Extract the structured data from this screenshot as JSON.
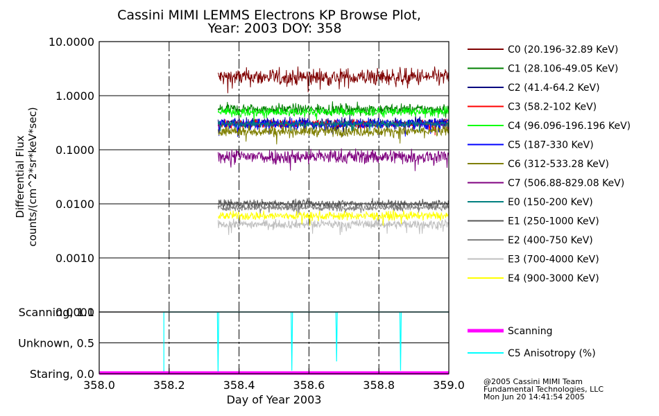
{
  "chart_data": {
    "type": "line",
    "title_line1": "Cassini MIMI LEMMS Electrons KP Browse Plot,",
    "title_line2": "Year: 2003 DOY: 358",
    "ylabel_line1": "Differential Flux",
    "ylabel_line2": "counts/(cm^2*sr*keV*sec)",
    "xlabel": "Day of Year 2003",
    "xlim": [
      358.0,
      359.0
    ],
    "x_ticks": [
      358.0,
      358.2,
      358.4,
      358.6,
      358.8,
      359.0
    ],
    "x_tick_labels": [
      "358.0",
      "358.2",
      "358.4",
      "358.6",
      "358.8",
      "359.0"
    ],
    "data_start": 358.34,
    "data_end": 359.0,
    "flux_panel": {
      "scale": "log",
      "ylim": [
        0.0001,
        10.0
      ],
      "y_ticks": [
        10.0,
        1.0,
        0.1,
        0.01,
        0.001,
        0.0001
      ],
      "y_tick_labels": [
        "10.0000",
        "1.0000",
        "0.1000",
        "0.0100",
        "0.0010",
        "0.0001"
      ],
      "series": [
        {
          "name": "C0 (20.196-32.89 KeV)",
          "color": "#7f0000",
          "level": 2.2,
          "noise": 0.08
        },
        {
          "name": "C1 (28.106-49.05 KeV)",
          "color": "#007f00",
          "level": 0.56,
          "noise": 0.05
        },
        {
          "name": "C2 (41.4-64.2 KeV)",
          "color": "#00007f",
          "level": 0.31,
          "noise": 0.05
        },
        {
          "name": "C3 (58.2-102 KeV)",
          "color": "#ff0000",
          "level": 0.3,
          "noise": 0.04
        },
        {
          "name": "C4 (96.096-196.196 KeV)",
          "color": "#00ff00",
          "level": 0.5,
          "noise": 0.04
        },
        {
          "name": "C5 (187-330 KeV)",
          "color": "#0000ff",
          "level": 0.3,
          "noise": 0.05
        },
        {
          "name": "C6 (312-533.28 KeV)",
          "color": "#7f7f00",
          "level": 0.22,
          "noise": 0.05
        },
        {
          "name": "C7 (506.88-829.08 KeV)",
          "color": "#7f007f",
          "level": 0.075,
          "noise": 0.07
        },
        {
          "name": "E0 (150-200 KeV)",
          "color": "#007f7f",
          "level": 0.3,
          "noise": 0.03
        },
        {
          "name": "E1 (250-1000 KeV)",
          "color": "#555555",
          "level": 0.01,
          "noise": 0.04
        },
        {
          "name": "E2 (400-750 KeV)",
          "color": "#7f7f7f",
          "level": 0.0085,
          "noise": 0.03
        },
        {
          "name": "E3 (700-4000 KeV)",
          "color": "#bfbfbf",
          "level": 0.0042,
          "noise": 0.04
        },
        {
          "name": "E4 (900-3000 KeV)",
          "color": "#ffff00",
          "level": 0.006,
          "noise": 0.04
        }
      ]
    },
    "mode_panel": {
      "ylim": [
        0.0,
        1.0
      ],
      "y_ticks": [
        1.0,
        0.5,
        0.0
      ],
      "y_tick_labels": [
        "Scanning, 1.0",
        "Unknown, 0.5",
        "Staring, 0.0"
      ],
      "series": [
        {
          "name": "Scanning",
          "color": "#ff00ff",
          "value": 0.0
        },
        {
          "name": "C5 Anisotropy (%)",
          "color": "#00ffff",
          "value": 1.0,
          "dips": [
            {
              "x": 358.185,
              "to": 0.0
            },
            {
              "x": 358.34,
              "to": 0.0
            },
            {
              "x": 358.551,
              "to": 0.05
            },
            {
              "x": 358.679,
              "to": 0.2
            },
            {
              "x": 358.862,
              "to": 0.05
            }
          ]
        }
      ]
    }
  },
  "footer": {
    "line1": "@2005 Cassini MIMI Team",
    "line2": "Fundamental Technologies, LLC",
    "line3": "Mon Jun 20 14:41:54 2005"
  }
}
